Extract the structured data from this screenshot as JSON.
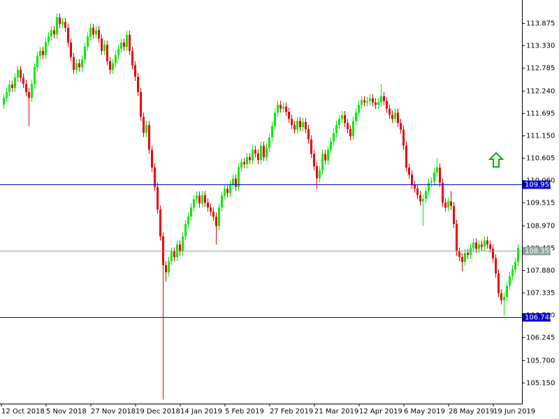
{
  "chart_data": {
    "type": "candlestick",
    "up_color": "#00ee00",
    "down_color": "#ee0000",
    "ylim": [
      104.642,
      114.434
    ],
    "yticks": [
      {
        "value": 105.15,
        "label": "105.150"
      },
      {
        "value": 105.7,
        "label": "105.700"
      },
      106.245,
      {
        "value": 106.79,
        "label": "106.790"
      },
      107.335,
      {
        "value": 107.88,
        "label": "107.880"
      },
      108.425,
      {
        "value": 108.97,
        "label": "108.970"
      },
      109.515,
      {
        "value": 110.06,
        "label": "110.060"
      },
      110.605,
      {
        "value": 111.15,
        "label": "111.150"
      },
      111.695,
      {
        "value": 112.24,
        "label": "112.240"
      },
      112.785,
      {
        "value": 113.33,
        "label": "113.330"
      },
      113.875
    ],
    "hlines": [
      {
        "value": 109.959,
        "label": "109.959",
        "color": "#0000cc"
      },
      {
        "value": 108.355,
        "label": "108.355",
        "color": "#8fa39a"
      },
      {
        "value": 106.748,
        "label": "106.748",
        "color": "#0000cc"
      }
    ],
    "categories": [
      "12 Oct 2018",
      null,
      null,
      null,
      null,
      null,
      null,
      null,
      null,
      null,
      null,
      null,
      null,
      null,
      null,
      null,
      "5 Nov 2018",
      null,
      null,
      null,
      null,
      null,
      null,
      null,
      null,
      null,
      null,
      null,
      null,
      null,
      null,
      null,
      "27 Nov 2018",
      null,
      null,
      null,
      null,
      null,
      null,
      null,
      null,
      null,
      null,
      null,
      null,
      null,
      null,
      null,
      "19 Dec 2018",
      null,
      null,
      null,
      null,
      null,
      null,
      null,
      null,
      null,
      null,
      null,
      null,
      null,
      null,
      null,
      "14 Jan 2019",
      null,
      null,
      null,
      null,
      null,
      null,
      null,
      null,
      null,
      null,
      null,
      null,
      null,
      null,
      null,
      "5 Feb 2019",
      null,
      null,
      null,
      null,
      null,
      null,
      null,
      null,
      null,
      null,
      null,
      null,
      null,
      null,
      null,
      "27 Feb 2019",
      null,
      null,
      null,
      null,
      null,
      null,
      null,
      null,
      null,
      null,
      null,
      null,
      null,
      null,
      null,
      "21 Mar 2019",
      null,
      null,
      null,
      null,
      null,
      null,
      null,
      null,
      null,
      null,
      null,
      null,
      null,
      null,
      null,
      "12 Apr 2019",
      null,
      null,
      null,
      null,
      null,
      null,
      null,
      null,
      null,
      null,
      null,
      null,
      null,
      null,
      null,
      "6 May 2019",
      null,
      null,
      null,
      null,
      null,
      null,
      null,
      null,
      null,
      null,
      null,
      null,
      null,
      null,
      null,
      "28 May 2019",
      null,
      null,
      null,
      null,
      null,
      null,
      null,
      null,
      null,
      null,
      null,
      null,
      null,
      null,
      null,
      "19 Jun 2019",
      null,
      null,
      null,
      null,
      null,
      null,
      null,
      null
    ],
    "open": [
      111.9,
      112.06,
      112.2,
      112.38,
      112.3,
      112.55,
      112.74,
      112.55,
      112.4,
      112.2,
      112.06,
      112.4,
      112.8,
      113.08,
      113.2,
      113.1,
      113.42,
      113.55,
      113.7,
      113.6,
      114.01,
      113.85,
      113.9,
      113.76,
      113.4,
      113.05,
      112.74,
      112.9,
      112.8,
      112.99,
      113.3,
      113.55,
      113.76,
      113.6,
      113.7,
      113.5,
      113.2,
      113.35,
      112.95,
      112.74,
      112.9,
      113.1,
      113.25,
      113.4,
      113.3,
      113.59,
      113.2,
      112.85,
      112.57,
      112.2,
      111.6,
      111.21,
      111.4,
      110.8,
      110.37,
      109.9,
      109.35,
      108.7,
      108.0,
      107.83,
      108.1,
      108.33,
      108.2,
      108.5,
      108.33,
      108.7,
      109.0,
      109.18,
      109.4,
      109.6,
      109.69,
      109.5,
      109.7,
      109.52,
      109.4,
      109.3,
      109.18,
      108.95,
      109.4,
      109.69,
      109.85,
      109.75,
      109.95,
      110.1,
      109.9,
      110.37,
      110.5,
      110.45,
      110.62,
      110.55,
      110.8,
      110.71,
      110.55,
      110.9,
      110.62,
      110.85,
      111.1,
      111.38,
      111.7,
      111.89,
      111.8,
      111.85,
      111.72,
      111.55,
      111.4,
      111.29,
      111.5,
      111.35,
      111.47,
      111.3,
      111.05,
      110.7,
      110.4,
      110.11,
      110.3,
      110.7,
      110.54,
      110.8,
      111.0,
      111.21,
      111.4,
      111.55,
      111.64,
      111.45,
      111.3,
      111.13,
      111.5,
      111.7,
      111.89,
      112.0,
      111.95,
      111.98,
      112.05,
      111.95,
      111.89,
      111.95,
      112.1,
      111.98,
      111.8,
      111.65,
      111.55,
      111.7,
      111.45,
      111.29,
      110.9,
      110.37,
      110.2,
      109.95,
      109.86,
      109.7,
      109.55,
      109.61,
      109.8,
      110.0,
      110.03,
      110.25,
      110.37,
      110.0,
      109.52,
      109.4,
      109.55,
      109.44,
      109.0,
      108.33,
      108.2,
      108.08,
      108.3,
      108.25,
      108.42,
      108.55,
      108.4,
      108.5,
      108.45,
      108.6,
      108.5,
      108.4,
      108.17,
      107.8,
      107.32,
      107.15,
      107.23,
      107.5,
      107.74,
      107.9,
      108.08
    ],
    "high": [
      112.16,
      112.3,
      112.48,
      112.48,
      112.65,
      112.84,
      112.84,
      112.65,
      112.5,
      112.3,
      112.5,
      112.9,
      113.18,
      113.3,
      113.3,
      113.52,
      113.65,
      113.8,
      113.8,
      114.11,
      114.11,
      114.0,
      114.0,
      113.86,
      113.5,
      113.15,
      113.0,
      113.0,
      113.09,
      113.4,
      113.65,
      113.86,
      113.86,
      113.8,
      113.8,
      113.6,
      113.45,
      113.45,
      113.05,
      113.0,
      113.2,
      113.35,
      113.5,
      113.5,
      113.69,
      113.69,
      113.3,
      112.95,
      112.67,
      112.3,
      111.7,
      111.5,
      111.5,
      110.9,
      110.47,
      110.0,
      109.45,
      108.8,
      108.1,
      108.2,
      108.43,
      108.43,
      108.6,
      108.6,
      108.8,
      109.1,
      109.28,
      109.5,
      109.7,
      109.79,
      109.79,
      109.8,
      109.8,
      109.62,
      109.5,
      109.4,
      109.28,
      109.5,
      109.79,
      109.95,
      109.95,
      110.05,
      110.2,
      110.2,
      110.47,
      110.6,
      110.6,
      110.72,
      110.72,
      110.9,
      110.9,
      110.81,
      111.0,
      111.0,
      110.95,
      111.2,
      111.48,
      111.8,
      111.99,
      111.99,
      111.95,
      111.95,
      111.82,
      111.65,
      111.5,
      111.6,
      111.6,
      111.57,
      111.57,
      111.4,
      111.15,
      110.8,
      110.5,
      110.4,
      110.8,
      110.8,
      110.9,
      111.1,
      111.31,
      111.5,
      111.65,
      111.74,
      111.74,
      111.55,
      111.4,
      111.6,
      111.8,
      111.99,
      112.1,
      112.1,
      112.08,
      112.15,
      112.15,
      112.05,
      112.05,
      112.4,
      112.2,
      112.08,
      111.9,
      111.75,
      111.8,
      111.8,
      111.55,
      111.39,
      111.0,
      110.47,
      110.3,
      110.05,
      109.96,
      109.8,
      109.71,
      109.9,
      110.1,
      110.13,
      110.35,
      110.6,
      110.47,
      110.1,
      109.62,
      109.65,
      109.8,
      109.54,
      109.1,
      108.43,
      108.3,
      108.4,
      108.4,
      108.52,
      108.65,
      108.65,
      108.6,
      108.6,
      108.7,
      108.7,
      108.6,
      108.5,
      108.27,
      107.9,
      107.42,
      107.33,
      107.6,
      107.84,
      108.0,
      108.18,
      108.52
    ],
    "low": [
      111.8,
      111.96,
      112.1,
      112.2,
      112.2,
      112.45,
      112.45,
      112.3,
      112.1,
      111.38,
      111.96,
      112.3,
      112.7,
      112.98,
      113.0,
      113.0,
      113.32,
      113.45,
      113.5,
      113.5,
      113.75,
      113.75,
      113.66,
      113.3,
      112.95,
      112.64,
      112.64,
      112.7,
      112.7,
      112.89,
      113.2,
      113.45,
      113.5,
      113.5,
      113.4,
      113.1,
      113.1,
      112.85,
      112.64,
      112.64,
      112.8,
      113.0,
      113.15,
      113.2,
      113.2,
      113.1,
      112.75,
      112.47,
      112.1,
      111.5,
      111.11,
      111.11,
      110.7,
      110.27,
      109.8,
      109.25,
      108.6,
      104.74,
      107.6,
      107.73,
      108.0,
      108.1,
      108.1,
      108.23,
      108.23,
      108.6,
      108.9,
      109.08,
      109.3,
      109.5,
      109.4,
      109.4,
      109.42,
      109.3,
      109.2,
      109.08,
      108.5,
      108.85,
      109.3,
      109.59,
      109.65,
      109.65,
      109.85,
      109.8,
      109.8,
      110.27,
      110.35,
      110.35,
      110.45,
      110.45,
      110.61,
      110.45,
      110.45,
      110.52,
      110.52,
      110.75,
      111.0,
      111.28,
      111.6,
      111.7,
      111.7,
      111.62,
      111.45,
      111.3,
      111.19,
      111.19,
      111.25,
      111.25,
      111.2,
      110.95,
      110.6,
      110.3,
      109.85,
      110.01,
      110.2,
      110.44,
      110.44,
      110.7,
      110.9,
      111.11,
      111.3,
      111.45,
      111.35,
      111.2,
      111.03,
      111.03,
      111.4,
      111.6,
      111.79,
      111.85,
      111.85,
      111.88,
      111.85,
      111.79,
      111.79,
      111.85,
      111.88,
      111.7,
      111.55,
      111.45,
      111.45,
      111.35,
      111.19,
      110.8,
      110.27,
      110.1,
      109.85,
      109.76,
      109.6,
      109.45,
      108.95,
      109.51,
      109.7,
      109.9,
      109.93,
      110.15,
      109.9,
      109.42,
      109.3,
      109.3,
      109.34,
      108.9,
      108.23,
      108.1,
      107.85,
      107.98,
      108.15,
      108.15,
      108.32,
      108.3,
      108.3,
      108.35,
      108.35,
      108.4,
      108.3,
      108.07,
      107.7,
      107.22,
      107.05,
      106.78,
      107.13,
      107.4,
      107.64,
      107.8,
      107.98
    ],
    "close": [
      112.06,
      112.2,
      112.38,
      112.3,
      112.55,
      112.74,
      112.55,
      112.4,
      112.2,
      112.06,
      112.4,
      112.8,
      113.08,
      113.2,
      113.1,
      113.42,
      113.55,
      113.7,
      113.6,
      114.01,
      113.85,
      113.9,
      113.76,
      113.4,
      113.05,
      112.74,
      112.9,
      112.8,
      112.99,
      113.3,
      113.55,
      113.76,
      113.6,
      113.7,
      113.5,
      113.2,
      113.35,
      112.95,
      112.74,
      112.9,
      113.1,
      113.25,
      113.4,
      113.3,
      113.59,
      113.2,
      112.85,
      112.57,
      112.2,
      111.6,
      111.21,
      111.4,
      110.8,
      110.37,
      109.9,
      109.35,
      108.7,
      108.0,
      107.83,
      108.1,
      108.33,
      108.2,
      108.5,
      108.33,
      108.7,
      109.0,
      109.18,
      109.4,
      109.6,
      109.69,
      109.5,
      109.7,
      109.52,
      109.4,
      109.3,
      109.18,
      108.95,
      109.4,
      109.69,
      109.85,
      109.75,
      109.95,
      110.1,
      109.9,
      110.37,
      110.5,
      110.45,
      110.62,
      110.55,
      110.8,
      110.71,
      110.55,
      110.9,
      110.62,
      110.85,
      111.1,
      111.38,
      111.7,
      111.89,
      111.8,
      111.85,
      111.72,
      111.55,
      111.4,
      111.29,
      111.5,
      111.35,
      111.47,
      111.3,
      111.05,
      110.7,
      110.4,
      110.11,
      110.3,
      110.7,
      110.54,
      110.8,
      111.0,
      111.21,
      111.4,
      111.55,
      111.64,
      111.45,
      111.3,
      111.13,
      111.5,
      111.7,
      111.89,
      112.0,
      111.95,
      111.98,
      112.05,
      111.95,
      111.89,
      111.95,
      112.1,
      111.98,
      111.8,
      111.65,
      111.55,
      111.7,
      111.45,
      111.29,
      110.9,
      110.37,
      110.2,
      109.95,
      109.86,
      109.7,
      109.55,
      109.61,
      109.8,
      110.0,
      110.03,
      110.25,
      110.37,
      110.0,
      109.52,
      109.4,
      109.55,
      109.44,
      109.0,
      108.33,
      108.2,
      108.08,
      108.3,
      108.25,
      108.42,
      108.55,
      108.4,
      108.5,
      108.45,
      108.6,
      108.5,
      108.4,
      108.17,
      107.8,
      107.32,
      107.15,
      107.23,
      107.5,
      107.74,
      107.9,
      108.08,
      108.42
    ]
  }
}
